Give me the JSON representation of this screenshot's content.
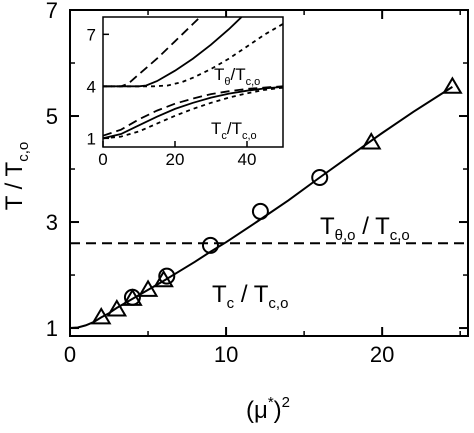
{
  "chart_data": [
    {
      "type": "line",
      "xlabel": {
        "base": "(μ",
        "sup1": "*",
        "mid": ")",
        "sup2": "2"
      },
      "ylabel": {
        "base": "T / T",
        "sub": "c,o"
      },
      "xlim": [
        0,
        25.5
      ],
      "ylim": [
        0.85,
        7.0
      ],
      "xticks": [
        0,
        10,
        20
      ],
      "xticklabels": [
        "0",
        "10",
        "20"
      ],
      "yticks": [
        1,
        3,
        5,
        7
      ],
      "yticklabels": [
        "1",
        "3",
        "5",
        "7"
      ],
      "grid": false,
      "annotations": [
        {
          "id": "theta",
          "parts": [
            "T",
            "θ,o",
            " / T",
            "c,o"
          ]
        },
        {
          "id": "tc",
          "parts": [
            "T",
            "c",
            " / T",
            "c,o"
          ]
        }
      ],
      "series": [
        {
          "style": "solid-line",
          "points": [
            [
              0,
              1.0
            ],
            [
              0.5,
              1.01
            ],
            [
              1.0,
              1.05
            ],
            [
              1.5,
              1.11
            ],
            [
              2.0,
              1.2
            ],
            [
              2.5,
              1.28
            ],
            [
              3.0,
              1.38
            ],
            [
              4.0,
              1.55
            ],
            [
              5.0,
              1.72
            ],
            [
              6.0,
              1.89
            ],
            [
              7.0,
              2.07
            ],
            [
              8.0,
              2.25
            ],
            [
              9.0,
              2.44
            ],
            [
              10,
              2.62
            ],
            [
              12,
              3.01
            ],
            [
              14,
              3.41
            ],
            [
              16,
              3.84
            ],
            [
              18,
              4.26
            ],
            [
              20,
              4.68
            ],
            [
              22,
              5.08
            ],
            [
              24.5,
              5.55
            ]
          ]
        },
        {
          "style": "dashed-line",
          "points": [
            [
              0,
              2.6
            ],
            [
              25.5,
              2.6
            ]
          ]
        },
        {
          "style": "open-circle",
          "points": [
            [
              4.0,
              1.58
            ],
            [
              6.2,
              1.98
            ],
            [
              9.0,
              2.56
            ],
            [
              12.2,
              3.2
            ],
            [
              16.0,
              3.84
            ]
          ]
        },
        {
          "style": "open-triangle",
          "points": [
            [
              2.0,
              1.2
            ],
            [
              3.0,
              1.35
            ],
            [
              4.0,
              1.55
            ],
            [
              5.0,
              1.72
            ],
            [
              6.0,
              1.9
            ],
            [
              19.3,
              4.5
            ],
            [
              24.5,
              5.55
            ]
          ]
        }
      ]
    },
    {
      "type": "line",
      "inset": true,
      "xlim": [
        0,
        50
      ],
      "ylim": [
        0.5,
        8.0
      ],
      "xticks": [
        0,
        20,
        40
      ],
      "xticklabels": [
        "0",
        "20",
        "40"
      ],
      "yticks": [
        1,
        4,
        7
      ],
      "yticklabels": [
        "1",
        "4",
        "7"
      ],
      "annotations": [
        {
          "id": "theta-inset",
          "parts": [
            "T",
            "θ",
            "/T",
            "c,o"
          ]
        },
        {
          "id": "tc-inset",
          "parts": [
            "T",
            "c",
            "/T",
            "c,o"
          ]
        }
      ],
      "series": [
        {
          "style": "long-dash",
          "points": [
            [
              0,
              4.0
            ],
            [
              5,
              4.0
            ],
            [
              7,
              4.15
            ],
            [
              10,
              4.7
            ],
            [
              15,
              5.6
            ],
            [
              20,
              6.6
            ],
            [
              25,
              7.6
            ],
            [
              27,
              8.0
            ]
          ]
        },
        {
          "style": "solid",
          "points": [
            [
              0,
              4.0
            ],
            [
              10,
              4.0
            ],
            [
              12,
              4.05
            ],
            [
              15,
              4.3
            ],
            [
              20,
              4.9
            ],
            [
              25,
              5.6
            ],
            [
              30,
              6.4
            ],
            [
              35,
              7.3
            ],
            [
              37,
              7.7
            ],
            [
              38.5,
              8.0
            ]
          ]
        },
        {
          "style": "short-dash",
          "points": [
            [
              0,
              4.0
            ],
            [
              14,
              4.0
            ],
            [
              18,
              4.05
            ],
            [
              22,
              4.25
            ],
            [
              25,
              4.5
            ],
            [
              30,
              5.0
            ],
            [
              35,
              5.6
            ],
            [
              40,
              6.3
            ],
            [
              45,
              7.0
            ],
            [
              50,
              7.6
            ]
          ]
        },
        {
          "style": "long-dash",
          "points": [
            [
              0,
              1.15
            ],
            [
              5,
              1.5
            ],
            [
              10,
              2.1
            ],
            [
              15,
              2.6
            ],
            [
              20,
              3.0
            ],
            [
              25,
              3.3
            ],
            [
              30,
              3.55
            ],
            [
              35,
              3.72
            ],
            [
              40,
              3.85
            ],
            [
              45,
              3.93
            ],
            [
              50,
              4.0
            ]
          ]
        },
        {
          "style": "solid",
          "points": [
            [
              0,
              1.0
            ],
            [
              5,
              1.25
            ],
            [
              10,
              1.75
            ],
            [
              15,
              2.25
            ],
            [
              20,
              2.7
            ],
            [
              25,
              3.05
            ],
            [
              30,
              3.35
            ],
            [
              35,
              3.58
            ],
            [
              40,
              3.75
            ],
            [
              45,
              3.88
            ],
            [
              50,
              3.97
            ]
          ]
        },
        {
          "style": "short-dash",
          "points": [
            [
              0,
              1.0
            ],
            [
              5,
              1.1
            ],
            [
              10,
              1.4
            ],
            [
              15,
              1.85
            ],
            [
              20,
              2.3
            ],
            [
              25,
              2.7
            ],
            [
              30,
              3.05
            ],
            [
              35,
              3.35
            ],
            [
              40,
              3.6
            ],
            [
              45,
              3.8
            ],
            [
              50,
              3.92
            ]
          ]
        }
      ]
    }
  ]
}
